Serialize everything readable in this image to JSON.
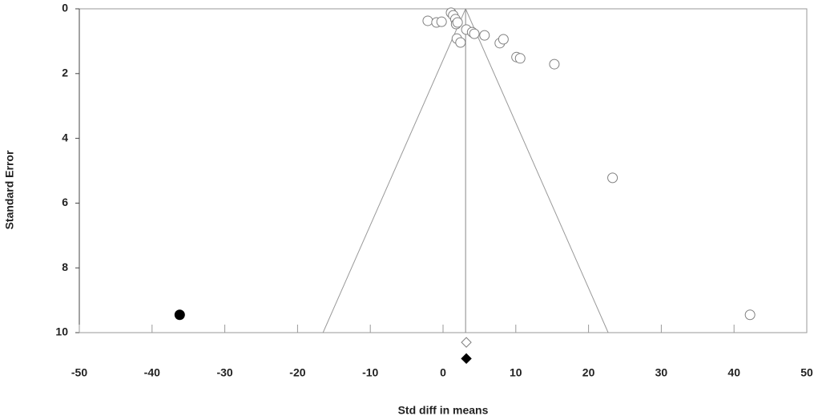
{
  "chart_data": {
    "type": "scatter",
    "x_label": "Std diff in means",
    "y_label": "Standard Error",
    "xlim": [
      -50,
      50
    ],
    "xticks": [
      -50,
      -40,
      -30,
      -20,
      -10,
      0,
      10,
      20,
      30,
      40,
      50
    ],
    "ylim": [
      0,
      10
    ],
    "yticks": [
      0,
      2,
      4,
      6,
      8,
      10
    ],
    "y_inverted": true,
    "mean": 3.1,
    "funnel_x_at_max_se": [
      -16.5,
      22.7
    ],
    "series": [
      {
        "color": "#808080",
        "filled": false,
        "x": [
          -2.1,
          -0.9,
          -0.2,
          1.1,
          1.4,
          1.7,
          1.8,
          2.0,
          1.9,
          2.4,
          3.2,
          4.0,
          4.3,
          5.7,
          7.8,
          8.3,
          10.1,
          10.6,
          15.3,
          23.3,
          42.2
        ],
        "y": [
          0.37,
          0.42,
          0.4,
          0.12,
          0.2,
          0.32,
          0.47,
          0.42,
          0.92,
          1.04,
          0.64,
          0.72,
          0.77,
          0.82,
          1.06,
          0.94,
          1.49,
          1.53,
          1.71,
          5.22,
          9.45
        ]
      },
      {
        "color": "#000000",
        "filled": true,
        "x": [
          -36.2
        ],
        "y": [
          9.45
        ]
      }
    ],
    "observed_summary": {
      "x": 3.2,
      "y": 10.3,
      "color": "#808080",
      "filled": false
    },
    "imputed_summary": {
      "x": 3.2,
      "y": 10.8,
      "color": "#000000",
      "filled": true
    }
  }
}
